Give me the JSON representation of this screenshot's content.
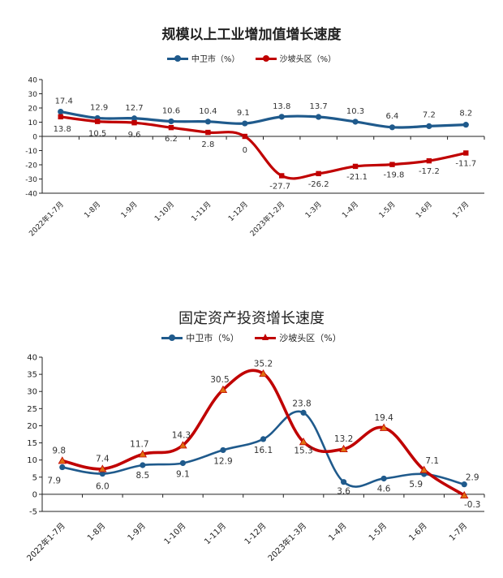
{
  "chart_data": [
    {
      "type": "line",
      "title": "规模以上工业增加值增长速度",
      "categories": [
        "2022年1-7月",
        "1-8月",
        "1-9月",
        "1-10月",
        "1-11月",
        "1-12月",
        "2023年1-2月",
        "1-3月",
        "1-4月",
        "1-5月",
        "1-6月",
        "1-7月"
      ],
      "series": [
        {
          "name": "中卫市（%）",
          "color": "#1f5a8c",
          "marker": "circle",
          "values": [
            17.4,
            12.9,
            12.7,
            10.6,
            10.4,
            9.1,
            13.8,
            13.7,
            10.3,
            6.4,
            7.2,
            8.2
          ],
          "labels": [
            "17.4",
            "12.9",
            "12.7",
            "10.6",
            "10.4",
            "9.1",
            "13.8",
            "13.7",
            "10.3",
            "6.4",
            "7.2",
            "8.2"
          ]
        },
        {
          "name": "沙坡头区（%）",
          "color": "#c00000",
          "marker": "square",
          "values": [
            13.8,
            10.5,
            9.6,
            6.2,
            2.8,
            0,
            -27.7,
            -26.2,
            -21.1,
            -19.8,
            -17.2,
            -11.7
          ],
          "labels": [
            "13.8",
            "10.5",
            "9.6",
            "6.2",
            "2.8",
            "0",
            "-27.7",
            "-26.2",
            "-21.1",
            "-19.8",
            "-17.2",
            "-11.7"
          ]
        }
      ],
      "y_ticks": [
        "40",
        "30",
        "20",
        "10",
        "0",
        "-10",
        "-20",
        "-30",
        "-40"
      ],
      "ylim": [
        -40,
        40
      ],
      "legend_position": "top",
      "grid": false
    },
    {
      "type": "line",
      "title": "固定资产投资增长速度",
      "categories": [
        "2022年1-7月",
        "1-8月",
        "1-9月",
        "1-10月",
        "1-11月",
        "1-12月",
        "2023年1-3月",
        "1-4月",
        "1-5月",
        "1-6月",
        "1-7月"
      ],
      "series": [
        {
          "name": "中卫市（%）",
          "color": "#1f5a8c",
          "marker": "circle",
          "values": [
            7.9,
            6.0,
            8.5,
            9.1,
            12.9,
            16.1,
            23.8,
            3.6,
            4.6,
            5.9,
            2.9
          ],
          "labels": [
            "7.9",
            "6.0",
            "8.5",
            "9.1",
            "12.9",
            "16.1",
            "23.8",
            "3.6",
            "4.6",
            "5.9",
            "2.9"
          ]
        },
        {
          "name": "沙坡头区（%）",
          "color": "#c00000",
          "marker": "triangle",
          "values": [
            9.8,
            7.4,
            11.7,
            14.3,
            30.5,
            35.2,
            15.3,
            13.2,
            19.4,
            7.1,
            -0.3
          ],
          "labels": [
            "9.8",
            "7.4",
            "11.7",
            "14.3",
            "30.5",
            "35.2",
            "15.3",
            "13.2",
            "19.4",
            "7.1",
            "-0.3"
          ]
        }
      ],
      "y_ticks": [
        "40",
        "35",
        "30",
        "25",
        "20",
        "15",
        "10",
        "5",
        "0",
        "-5"
      ],
      "ylim": [
        -5,
        40
      ],
      "legend_position": "top",
      "grid": false
    }
  ]
}
